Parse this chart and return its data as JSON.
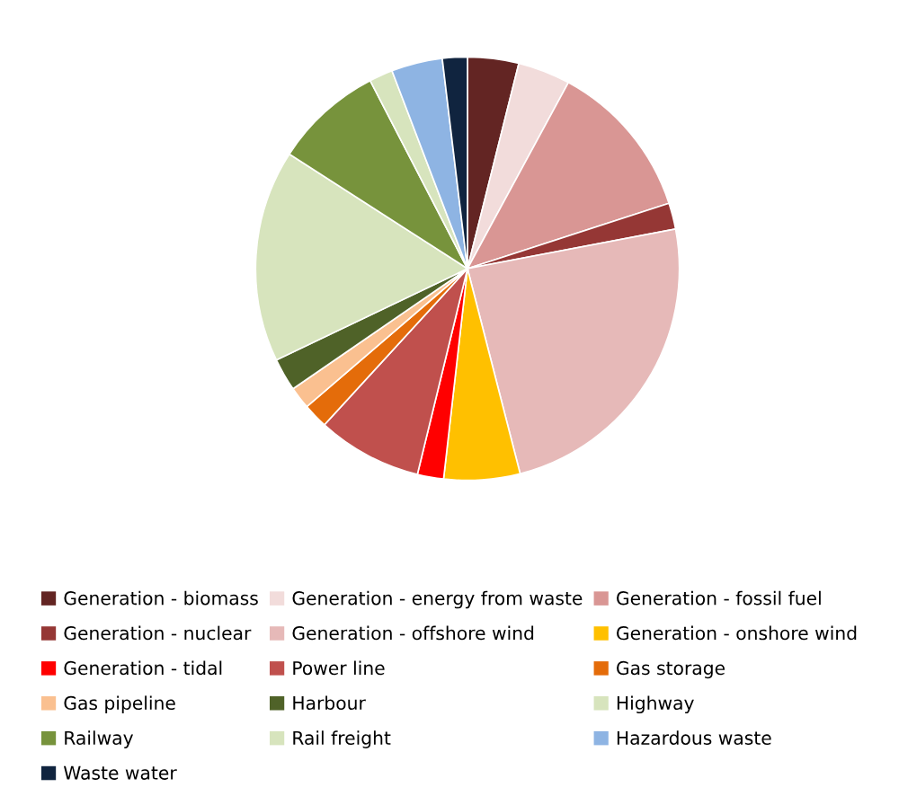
{
  "chart_data": {
    "type": "pie",
    "legend": "bottom",
    "categories": [
      "Generation - biomass",
      "Generation - energy from waste",
      "Generation - fossil fuel",
      "Generation - nuclear",
      "Generation - offshore wind",
      "Generation - onshore wind",
      "Generation - tidal",
      "Power line",
      "Gas storage",
      "Gas pipeline",
      "Harbour",
      "Highway",
      "Railway",
      "Rail freight",
      "Hazardous waste",
      "Waste water"
    ],
    "values": [
      3.9,
      4.0,
      12.1,
      2.0,
      24.0,
      5.8,
      2.0,
      8.0,
      1.9,
      1.7,
      2.5,
      16.2,
      8.3,
      1.8,
      3.9,
      1.9
    ],
    "colors": [
      "#632523",
      "#f2dcdb",
      "#d99694",
      "#953735",
      "#e6b9b8",
      "#ffc000",
      "#ff0000",
      "#c0504d",
      "#e46c0a",
      "#fac090",
      "#4f6228",
      "#d7e4bd",
      "#77933c",
      "#d7e4bd",
      "#8eb4e3",
      "#10243f"
    ]
  }
}
